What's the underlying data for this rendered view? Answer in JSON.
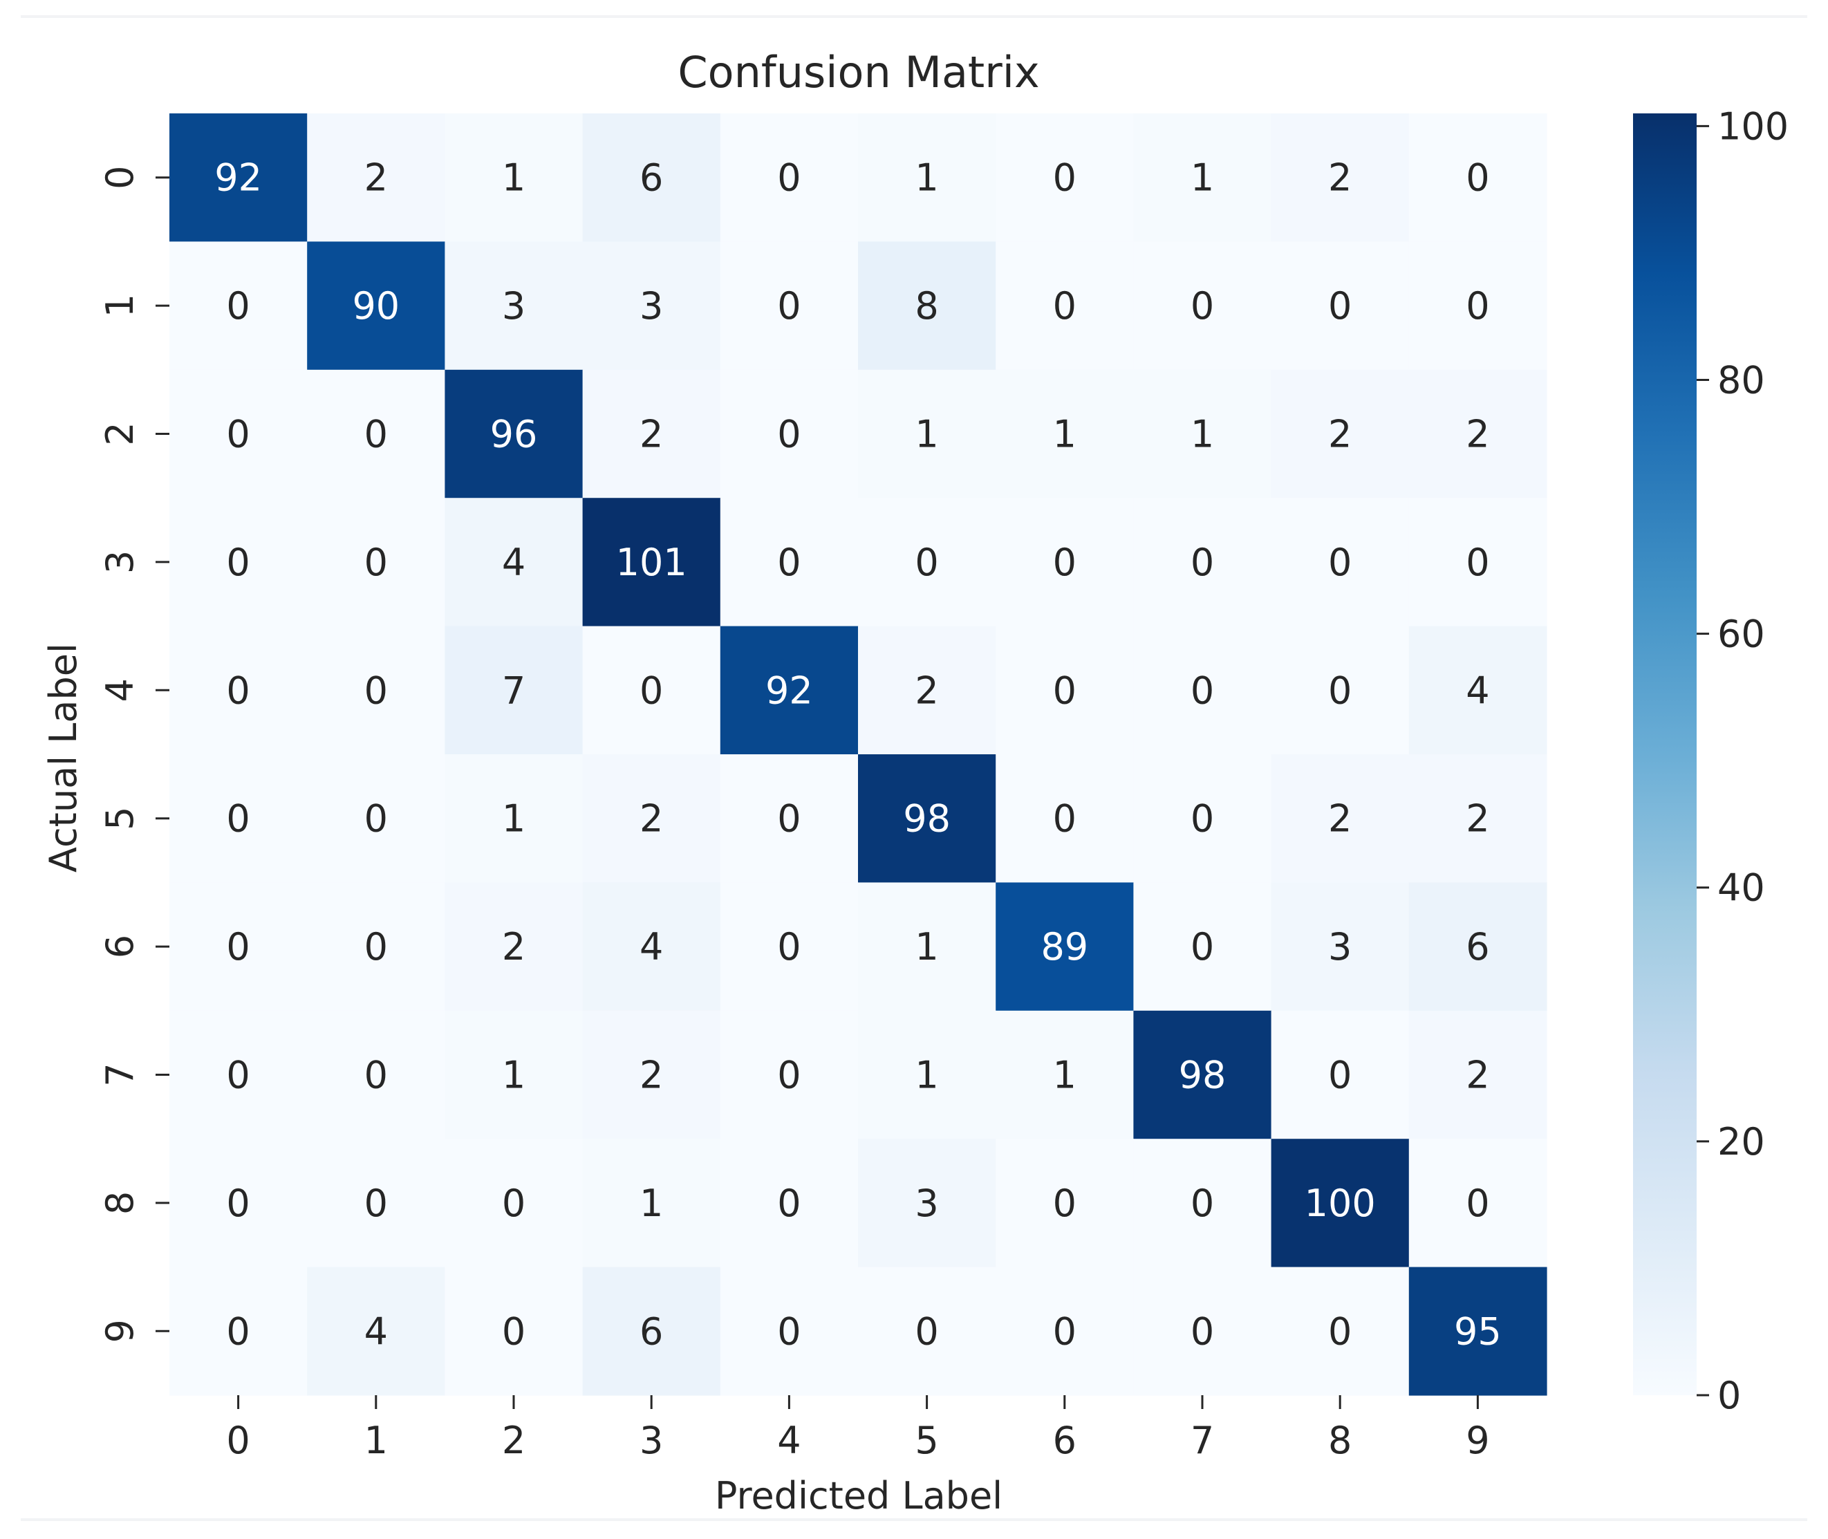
{
  "chart_data": {
    "type": "heatmap",
    "title": "Confusion Matrix",
    "xlabel": "Predicted Label",
    "ylabel": "Actual Label",
    "x_categories": [
      "0",
      "1",
      "2",
      "3",
      "4",
      "5",
      "6",
      "7",
      "8",
      "9"
    ],
    "y_categories": [
      "0",
      "1",
      "2",
      "3",
      "4",
      "5",
      "6",
      "7",
      "8",
      "9"
    ],
    "values": [
      [
        92,
        2,
        1,
        6,
        0,
        1,
        0,
        1,
        2,
        0
      ],
      [
        0,
        90,
        3,
        3,
        0,
        8,
        0,
        0,
        0,
        0
      ],
      [
        0,
        0,
        96,
        2,
        0,
        1,
        1,
        1,
        2,
        2
      ],
      [
        0,
        0,
        4,
        101,
        0,
        0,
        0,
        0,
        0,
        0
      ],
      [
        0,
        0,
        7,
        0,
        92,
        2,
        0,
        0,
        0,
        4
      ],
      [
        0,
        0,
        1,
        2,
        0,
        98,
        0,
        0,
        2,
        2
      ],
      [
        0,
        0,
        2,
        4,
        0,
        1,
        89,
        0,
        3,
        6
      ],
      [
        0,
        0,
        1,
        2,
        0,
        1,
        1,
        98,
        0,
        2
      ],
      [
        0,
        0,
        0,
        1,
        0,
        3,
        0,
        0,
        100,
        0
      ],
      [
        0,
        4,
        0,
        6,
        0,
        0,
        0,
        0,
        0,
        95
      ]
    ],
    "colormap": "Blues",
    "colorbar": {
      "range": [
        0,
        101
      ],
      "ticks": [
        0,
        20,
        40,
        60,
        80,
        100
      ]
    },
    "annotated": true,
    "grid": false,
    "legend": "colorbar-right"
  }
}
